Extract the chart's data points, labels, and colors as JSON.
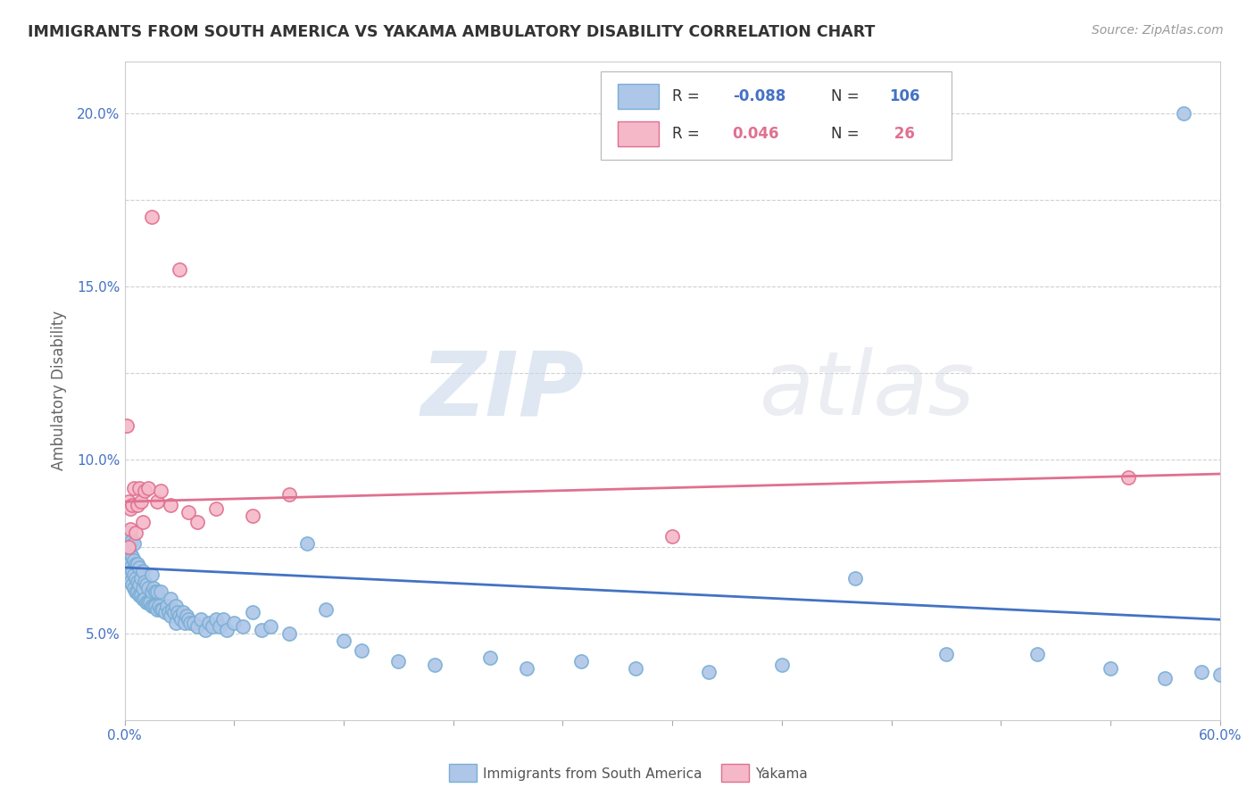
{
  "title": "IMMIGRANTS FROM SOUTH AMERICA VS YAKAMA AMBULATORY DISABILITY CORRELATION CHART",
  "source": "Source: ZipAtlas.com",
  "ylabel": "Ambulatory Disability",
  "xlim": [
    0.0,
    0.6
  ],
  "ylim": [
    0.025,
    0.215
  ],
  "yticks": [
    0.05,
    0.075,
    0.1,
    0.125,
    0.15,
    0.175,
    0.2
  ],
  "ytick_labels": [
    "5.0%",
    "",
    "10.0%",
    "",
    "15.0%",
    "",
    "20.0%"
  ],
  "watermark_zip": "ZIP",
  "watermark_atlas": "atlas",
  "blue_color": "#aec6e8",
  "blue_edge": "#7aafd4",
  "pink_color": "#f5b8c8",
  "pink_edge": "#e07090",
  "blue_line_color": "#4472c4",
  "pink_line_color": "#e07090",
  "blue_scatter_x": [
    0.001,
    0.001,
    0.001,
    0.002,
    0.002,
    0.002,
    0.002,
    0.003,
    0.003,
    0.003,
    0.003,
    0.004,
    0.004,
    0.004,
    0.004,
    0.005,
    0.005,
    0.005,
    0.005,
    0.006,
    0.006,
    0.006,
    0.007,
    0.007,
    0.007,
    0.008,
    0.008,
    0.008,
    0.009,
    0.009,
    0.01,
    0.01,
    0.01,
    0.011,
    0.011,
    0.012,
    0.012,
    0.013,
    0.013,
    0.014,
    0.015,
    0.015,
    0.015,
    0.016,
    0.016,
    0.017,
    0.017,
    0.018,
    0.018,
    0.019,
    0.02,
    0.02,
    0.021,
    0.022,
    0.023,
    0.024,
    0.025,
    0.025,
    0.026,
    0.027,
    0.028,
    0.028,
    0.029,
    0.03,
    0.031,
    0.032,
    0.033,
    0.034,
    0.035,
    0.036,
    0.038,
    0.04,
    0.042,
    0.044,
    0.046,
    0.048,
    0.05,
    0.052,
    0.054,
    0.056,
    0.06,
    0.065,
    0.07,
    0.075,
    0.08,
    0.09,
    0.1,
    0.11,
    0.12,
    0.13,
    0.15,
    0.17,
    0.2,
    0.22,
    0.25,
    0.28,
    0.32,
    0.36,
    0.4,
    0.45,
    0.5,
    0.54,
    0.57,
    0.59,
    0.58,
    0.6
  ],
  "blue_scatter_y": [
    0.072,
    0.076,
    0.068,
    0.07,
    0.074,
    0.066,
    0.079,
    0.065,
    0.069,
    0.073,
    0.078,
    0.064,
    0.068,
    0.072,
    0.077,
    0.063,
    0.067,
    0.071,
    0.076,
    0.062,
    0.066,
    0.07,
    0.062,
    0.065,
    0.07,
    0.061,
    0.064,
    0.069,
    0.061,
    0.066,
    0.06,
    0.063,
    0.068,
    0.06,
    0.065,
    0.059,
    0.064,
    0.059,
    0.063,
    0.059,
    0.058,
    0.062,
    0.067,
    0.058,
    0.063,
    0.058,
    0.062,
    0.057,
    0.062,
    0.058,
    0.057,
    0.062,
    0.057,
    0.056,
    0.058,
    0.056,
    0.06,
    0.055,
    0.057,
    0.056,
    0.058,
    0.053,
    0.056,
    0.055,
    0.054,
    0.056,
    0.053,
    0.055,
    0.054,
    0.053,
    0.053,
    0.052,
    0.054,
    0.051,
    0.053,
    0.052,
    0.054,
    0.052,
    0.054,
    0.051,
    0.053,
    0.052,
    0.056,
    0.051,
    0.052,
    0.05,
    0.076,
    0.057,
    0.048,
    0.045,
    0.042,
    0.041,
    0.043,
    0.04,
    0.042,
    0.04,
    0.039,
    0.041,
    0.066,
    0.044,
    0.044,
    0.04,
    0.037,
    0.039,
    0.2,
    0.038
  ],
  "pink_scatter_x": [
    0.001,
    0.002,
    0.002,
    0.003,
    0.003,
    0.004,
    0.005,
    0.006,
    0.007,
    0.008,
    0.009,
    0.01,
    0.011,
    0.013,
    0.015,
    0.018,
    0.02,
    0.025,
    0.03,
    0.035,
    0.04,
    0.05,
    0.07,
    0.09,
    0.3,
    0.55
  ],
  "pink_scatter_y": [
    0.11,
    0.075,
    0.088,
    0.08,
    0.086,
    0.087,
    0.092,
    0.079,
    0.087,
    0.092,
    0.088,
    0.082,
    0.091,
    0.092,
    0.17,
    0.088,
    0.091,
    0.087,
    0.155,
    0.085,
    0.082,
    0.086,
    0.084,
    0.09,
    0.078,
    0.095
  ],
  "blue_trend_x": [
    0.0,
    0.6
  ],
  "blue_trend_y": [
    0.069,
    0.054
  ],
  "pink_trend_x": [
    0.0,
    0.6
  ],
  "pink_trend_y": [
    0.088,
    0.096
  ],
  "background_color": "#ffffff",
  "grid_color": "#d0d0d0",
  "legend_r1_label": "R = ",
  "legend_r1_val": "-0.088",
  "legend_n1_label": "N = ",
  "legend_n1_val": "106",
  "legend_r2_label": "R =  ",
  "legend_r2_val": "0.046",
  "legend_n2_label": "N = ",
  "legend_n2_val": " 26",
  "blue_text_color": "#4472c4",
  "pink_text_color": "#e07090"
}
